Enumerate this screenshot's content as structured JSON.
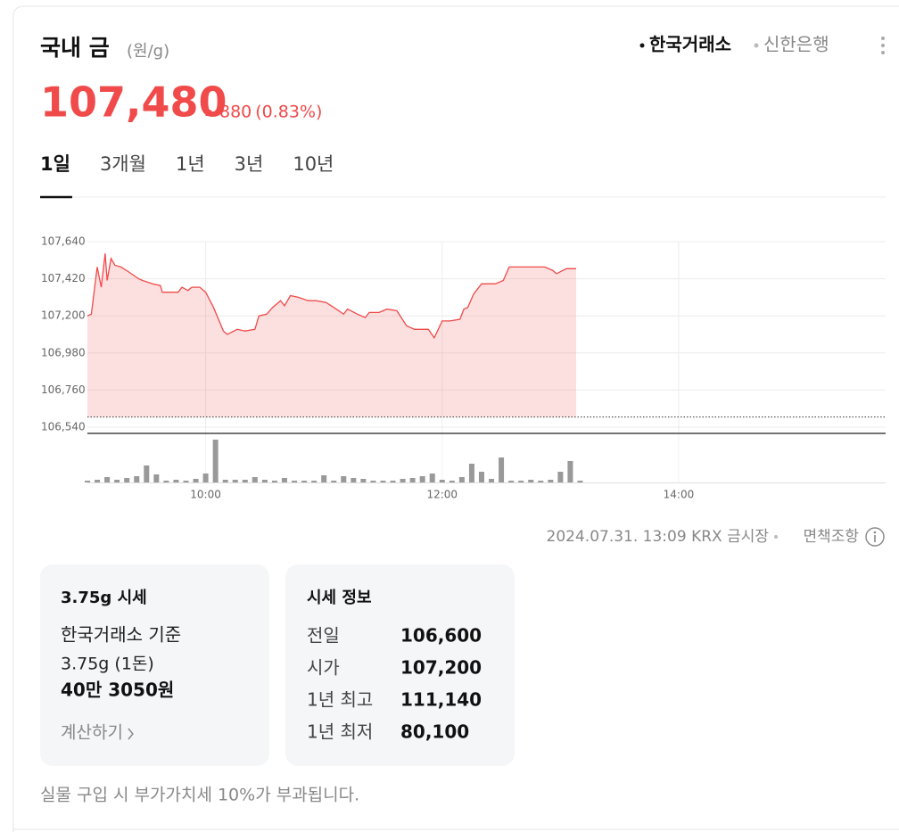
{
  "header": {
    "title": "국내 금",
    "unit": "(원/g)",
    "sources": [
      "한국거래소",
      "신한은행"
    ],
    "selected_source": 0
  },
  "price": {
    "value": "107,480",
    "change": "880",
    "change_pct": "(0.83%)",
    "direction": "up"
  },
  "tabs": [
    "1일",
    "3개월",
    "1년",
    "3년",
    "10년"
  ],
  "selected_tab": 0,
  "chart_data": {
    "type": "area",
    "x": [
      "09:00",
      "09:02",
      "09:05",
      "09:07",
      "09:09",
      "09:10",
      "09:12",
      "09:14",
      "09:17",
      "09:21",
      "09:26",
      "09:28",
      "09:33",
      "09:37",
      "09:38",
      "09:46",
      "09:48",
      "09:51",
      "09:53",
      "09:57",
      "10:00",
      "10:04",
      "10:09",
      "10:11",
      "10:16",
      "10:20",
      "10:25",
      "10:27",
      "10:31",
      "10:34",
      "10:38",
      "10:40",
      "10:43",
      "10:47",
      "10:52",
      "10:56",
      "11:01",
      "11:05",
      "11:10",
      "11:12",
      "11:17",
      "11:21",
      "11:23",
      "11:28",
      "11:32",
      "11:37",
      "11:42",
      "11:46",
      "11:53",
      "11:56",
      "12:00",
      "12:04",
      "12:09",
      "12:11",
      "12:13",
      "12:16",
      "12:20",
      "12:27",
      "12:31",
      "12:34",
      "12:43",
      "12:52",
      "12:56",
      "12:58",
      "13:03",
      "13:08"
    ],
    "values": [
      107200,
      107210,
      107490,
      107370,
      107570,
      107410,
      107540,
      107500,
      107490,
      107460,
      107420,
      107410,
      107390,
      107380,
      107340,
      107340,
      107370,
      107350,
      107370,
      107370,
      107340,
      107250,
      107110,
      107090,
      107120,
      107110,
      107120,
      107200,
      107210,
      107250,
      107290,
      107260,
      107320,
      107310,
      107290,
      107290,
      107280,
      107250,
      107210,
      107240,
      107210,
      107190,
      107220,
      107220,
      107240,
      107230,
      107140,
      107120,
      107120,
      107070,
      107170,
      107170,
      107180,
      107240,
      107250,
      107330,
      107390,
      107390,
      107410,
      107490,
      107490,
      107490,
      107470,
      107450,
      107480,
      107480
    ],
    "color": "#f04a4a",
    "baseline": 106600,
    "xlim": [
      "09:00",
      "15:45"
    ],
    "xticks": [
      "10:00",
      "12:00",
      "14:00"
    ],
    "ylim": [
      106540,
      107640
    ],
    "yticks": [
      {
        "value": 106540,
        "label": "106,540"
      },
      {
        "value": 106760,
        "label": "106,760"
      },
      {
        "value": 106980,
        "label": "106,980"
      },
      {
        "value": 107200,
        "label": "107,200"
      },
      {
        "value": 107420,
        "label": "107,420"
      },
      {
        "value": 107640,
        "label": "107,640"
      }
    ],
    "grid": true,
    "volume": {
      "x": [
        "09:00",
        "09:05",
        "09:10",
        "09:15",
        "09:20",
        "09:25",
        "09:30",
        "09:35",
        "09:40",
        "09:45",
        "09:50",
        "09:55",
        "10:00",
        "10:05",
        "10:10",
        "10:15",
        "10:20",
        "10:25",
        "10:30",
        "10:35",
        "10:40",
        "10:45",
        "10:50",
        "10:55",
        "11:00",
        "11:05",
        "11:10",
        "11:15",
        "11:20",
        "11:25",
        "11:30",
        "11:35",
        "11:40",
        "11:45",
        "11:50",
        "11:55",
        "12:00",
        "12:05",
        "12:10",
        "12:15",
        "12:20",
        "12:25",
        "12:30",
        "12:35",
        "12:40",
        "12:45",
        "12:50",
        "12:55",
        "13:00",
        "13:05",
        "13:10"
      ],
      "values": [
        2,
        3,
        6,
        3,
        5,
        7,
        19,
        9,
        2,
        3,
        2,
        4,
        10,
        48,
        3,
        3,
        3,
        6,
        3,
        2,
        5,
        2,
        2,
        2,
        8,
        2,
        7,
        5,
        4,
        2,
        2,
        2,
        4,
        5,
        7,
        10,
        3,
        2,
        6,
        21,
        12,
        4,
        28,
        2,
        2,
        3,
        2,
        3,
        12,
        24,
        2
      ],
      "color": "#999999"
    }
  },
  "timestamp": "2024.07.31. 13:09 KRX 금시장",
  "disclaimer": "면책조항",
  "weight_card": {
    "title": "3.75g 시세",
    "basis": "한국거래소 기준",
    "weight": "3.75g (1돈)",
    "amount": "40만 3050원",
    "link": "계산하기"
  },
  "info_card": {
    "title": "시세 정보",
    "rows": [
      [
        "전일",
        "106,600"
      ],
      [
        "시가",
        "107,200"
      ],
      [
        "1년 최고",
        "111,140"
      ],
      [
        "1년 최저",
        "80,100"
      ]
    ]
  },
  "note": "실물 구입 시 부가가치세 10%가 부과됩니다."
}
